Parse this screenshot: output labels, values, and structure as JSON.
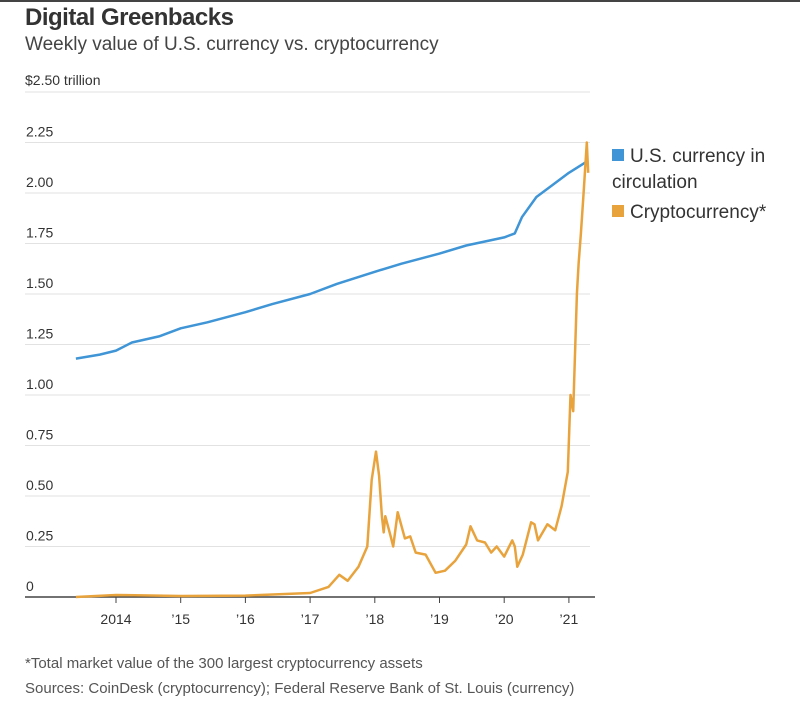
{
  "chart_data": {
    "type": "line",
    "title": "Digital Greenbacks",
    "subtitle": "Weekly value of U.S. currency vs. cryptocurrency",
    "unit_label": "$2.50 trillion",
    "ylim": [
      0,
      2.5
    ],
    "yticks": [
      {
        "v": 2.25,
        "label": "2.25"
      },
      {
        "v": 2.0,
        "label": "2.00"
      },
      {
        "v": 1.75,
        "label": "1.75"
      },
      {
        "v": 1.5,
        "label": "1.50"
      },
      {
        "v": 1.25,
        "label": "1.25"
      },
      {
        "v": 1.0,
        "label": "1.00"
      },
      {
        "v": 0.75,
        "label": "0.75"
      },
      {
        "v": 0.5,
        "label": "0.50"
      },
      {
        "v": 0.25,
        "label": "0.25"
      },
      {
        "v": 0,
        "label": "0"
      }
    ],
    "xticks": [
      {
        "date": "2014-01-01",
        "label": "2014"
      },
      {
        "date": "2015-01-01",
        "label": "’15"
      },
      {
        "date": "2016-01-01",
        "label": "’16"
      },
      {
        "date": "2017-01-01",
        "label": "’17"
      },
      {
        "date": "2018-01-01",
        "label": "’18"
      },
      {
        "date": "2019-01-01",
        "label": "’19"
      },
      {
        "date": "2020-01-01",
        "label": "’20"
      },
      {
        "date": "2021-01-01",
        "label": "’21"
      }
    ],
    "grid": true,
    "legend_position": "right",
    "series": [
      {
        "name": "U.S. currency in circulation",
        "color": "#3f95d6",
        "points": [
          [
            "2013-05-20",
            1.18
          ],
          [
            "2013-10-01",
            1.2
          ],
          [
            "2014-01-01",
            1.22
          ],
          [
            "2014-04-01",
            1.26
          ],
          [
            "2014-09-01",
            1.29
          ],
          [
            "2015-01-01",
            1.33
          ],
          [
            "2015-06-01",
            1.36
          ],
          [
            "2016-01-01",
            1.41
          ],
          [
            "2016-06-01",
            1.45
          ],
          [
            "2017-01-01",
            1.5
          ],
          [
            "2017-06-01",
            1.55
          ],
          [
            "2018-01-01",
            1.61
          ],
          [
            "2018-06-01",
            1.65
          ],
          [
            "2019-01-01",
            1.7
          ],
          [
            "2019-06-01",
            1.74
          ],
          [
            "2020-01-01",
            1.78
          ],
          [
            "2020-03-01",
            1.8
          ],
          [
            "2020-04-10",
            1.88
          ],
          [
            "2020-07-01",
            1.98
          ],
          [
            "2020-10-01",
            2.04
          ],
          [
            "2021-01-01",
            2.1
          ],
          [
            "2021-04-20",
            2.16
          ]
        ]
      },
      {
        "name": "Cryptocurrency*",
        "color": "#e8a33d",
        "points": [
          [
            "2013-05-20",
            0.0
          ],
          [
            "2014-01-01",
            0.01
          ],
          [
            "2015-01-01",
            0.005
          ],
          [
            "2016-01-01",
            0.007
          ],
          [
            "2017-01-01",
            0.02
          ],
          [
            "2017-04-15",
            0.05
          ],
          [
            "2017-06-15",
            0.11
          ],
          [
            "2017-08-01",
            0.08
          ],
          [
            "2017-10-01",
            0.15
          ],
          [
            "2017-11-20",
            0.25
          ],
          [
            "2017-12-15",
            0.58
          ],
          [
            "2018-01-08",
            0.72
          ],
          [
            "2018-01-25",
            0.6
          ],
          [
            "2018-02-10",
            0.4
          ],
          [
            "2018-02-20",
            0.32
          ],
          [
            "2018-03-01",
            0.4
          ],
          [
            "2018-04-01",
            0.3
          ],
          [
            "2018-04-15",
            0.25
          ],
          [
            "2018-05-10",
            0.42
          ],
          [
            "2018-06-20",
            0.29
          ],
          [
            "2018-07-20",
            0.3
          ],
          [
            "2018-08-20",
            0.22
          ],
          [
            "2018-10-15",
            0.21
          ],
          [
            "2018-12-10",
            0.12
          ],
          [
            "2019-02-01",
            0.13
          ],
          [
            "2019-04-01",
            0.18
          ],
          [
            "2019-06-01",
            0.26
          ],
          [
            "2019-06-25",
            0.35
          ],
          [
            "2019-08-01",
            0.28
          ],
          [
            "2019-09-15",
            0.27
          ],
          [
            "2019-10-20",
            0.22
          ],
          [
            "2019-11-20",
            0.25
          ],
          [
            "2020-01-01",
            0.2
          ],
          [
            "2020-02-15",
            0.28
          ],
          [
            "2020-03-01",
            0.25
          ],
          [
            "2020-03-15",
            0.15
          ],
          [
            "2020-04-15",
            0.21
          ],
          [
            "2020-06-01",
            0.37
          ],
          [
            "2020-06-20",
            0.36
          ],
          [
            "2020-07-10",
            0.28
          ],
          [
            "2020-09-01",
            0.36
          ],
          [
            "2020-10-15",
            0.33
          ],
          [
            "2020-11-20",
            0.45
          ],
          [
            "2020-12-25",
            0.62
          ],
          [
            "2021-01-10",
            1.0
          ],
          [
            "2021-01-25",
            0.92
          ],
          [
            "2021-02-15",
            1.5
          ],
          [
            "2021-02-25",
            1.65
          ],
          [
            "2021-03-10",
            1.8
          ],
          [
            "2021-03-25",
            2.0
          ],
          [
            "2021-04-12",
            2.25
          ],
          [
            "2021-04-20",
            2.1
          ]
        ]
      }
    ],
    "footnote": "*Total market value of the 300 largest cryptocurrency assets",
    "sources": "Sources: CoinDesk (cryptocurrency); Federal Reserve Bank of St. Louis (currency)"
  }
}
